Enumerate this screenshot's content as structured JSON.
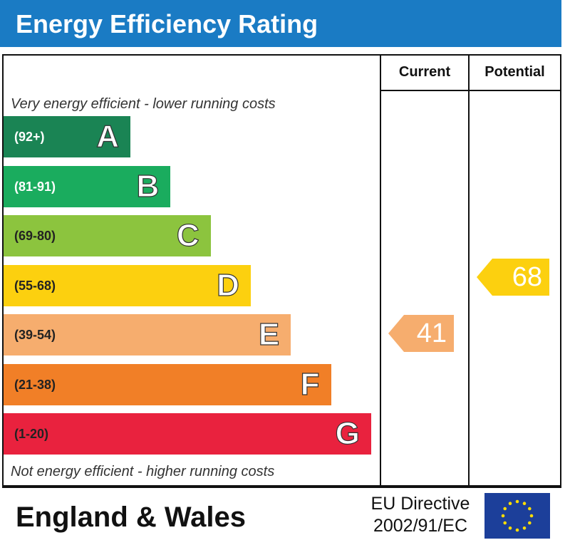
{
  "header": {
    "title": "Energy Efficiency Rating"
  },
  "columns": {
    "current": "Current",
    "potential": "Potential"
  },
  "notes": {
    "top": "Very energy efficient - lower running costs",
    "bottom": "Not energy efficient - higher running costs"
  },
  "chart_data": {
    "type": "bar",
    "title": "Energy Efficiency Rating",
    "bands": [
      {
        "letter": "A",
        "range": "(92+)",
        "color": "#1a8454",
        "text_dark": false
      },
      {
        "letter": "B",
        "range": "(81-91)",
        "color": "#1aac5e",
        "text_dark": false
      },
      {
        "letter": "C",
        "range": "(69-80)",
        "color": "#8cc43e",
        "text_dark": true
      },
      {
        "letter": "D",
        "range": "(55-68)",
        "color": "#fcd00f",
        "text_dark": true
      },
      {
        "letter": "E",
        "range": "(39-54)",
        "color": "#f6ad6e",
        "text_dark": true
      },
      {
        "letter": "F",
        "range": "(21-38)",
        "color": "#f17f27",
        "text_dark": true
      },
      {
        "letter": "G",
        "range": "(1-20)",
        "color": "#e9223e",
        "text_dark": true
      }
    ],
    "current": {
      "value": 41,
      "band": "E",
      "color": "#f6ad6e"
    },
    "potential": {
      "value": 68,
      "band": "D",
      "color": "#fcd00f"
    }
  },
  "footer": {
    "country": "England & Wales",
    "directive_line1": "EU Directive",
    "directive_line2": "2002/91/EC"
  },
  "icons": {
    "flag": "eu-flag-icon"
  }
}
